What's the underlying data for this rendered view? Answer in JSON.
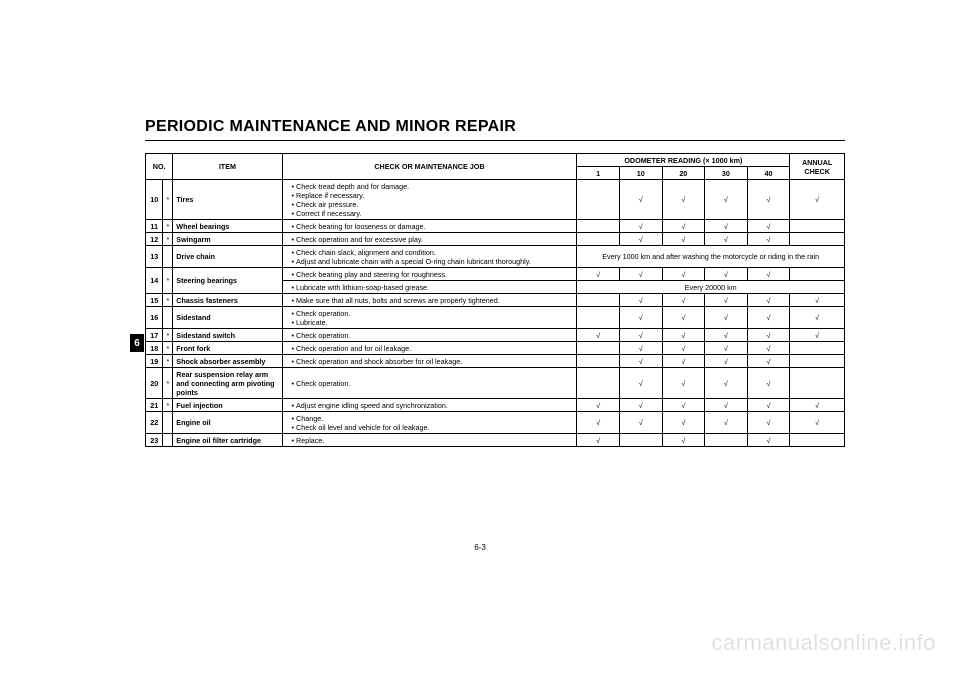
{
  "page": {
    "title": "PERIODIC MAINTENANCE AND MINOR REPAIR",
    "section_tab": "6",
    "page_number": "6-3",
    "watermark": "carmanualsonline.info"
  },
  "typography": {
    "title_fontsize_pt": 12,
    "table_fontsize_pt": 5.5,
    "tab_fontsize_pt": 8,
    "watermark_fontsize_pt": 16
  },
  "colors": {
    "text": "#000000",
    "background": "#ffffff",
    "border": "#000000",
    "tab_bg": "#000000",
    "tab_fg": "#ffffff",
    "watermark": "rgba(0,0,0,0.12)"
  },
  "table": {
    "check_glyph": "√",
    "header": {
      "no": "NO.",
      "item": "ITEM",
      "job": "CHECK OR MAINTENANCE JOB",
      "odometer_title": "ODOMETER READING (× 1000 km)",
      "annual": "ANNUAL CHECK",
      "odometer_cols": [
        "1",
        "10",
        "20",
        "30",
        "40"
      ]
    },
    "rows": [
      {
        "no": "10",
        "star": "*",
        "item": "Tires",
        "jobs": [
          "Check tread depth and for damage.",
          "Replace if necessary.",
          "Check air pressure.",
          "Correct if necessary."
        ],
        "checks": [
          "",
          "√",
          "√",
          "√",
          "√"
        ],
        "annual": "√"
      },
      {
        "no": "11",
        "star": "*",
        "item": "Wheel bearings",
        "jobs": [
          "Check bearing for looseness or damage."
        ],
        "checks": [
          "",
          "√",
          "√",
          "√",
          "√"
        ],
        "annual": ""
      },
      {
        "no": "12",
        "star": "*",
        "item": "Swingarm",
        "jobs": [
          "Check operation and for excessive play."
        ],
        "checks": [
          "",
          "√",
          "√",
          "√",
          "√"
        ],
        "annual": ""
      },
      {
        "no": "13",
        "star": "",
        "item": "Drive chain",
        "jobs": [
          "Check chain slack, alignment and condition.",
          "Adjust and lubricate chain with a special O-ring chain lubricant thoroughly."
        ],
        "span_note": "Every 1000 km and after washing the motorcycle or riding in the rain"
      },
      {
        "no": "14",
        "star": "*",
        "item": "Steering bearings",
        "subrows": [
          {
            "jobs": [
              "Check bearing play and steering for roughness."
            ],
            "checks": [
              "√",
              "√",
              "√",
              "√",
              "√"
            ],
            "annual": ""
          },
          {
            "jobs": [
              "Lubricate with lithium-soap-based grease."
            ],
            "span_note": "Every 20000 km"
          }
        ]
      },
      {
        "no": "15",
        "star": "*",
        "item": "Chassis fasteners",
        "jobs": [
          "Make sure that all nuts, bolts and screws are properly tightened."
        ],
        "checks": [
          "",
          "√",
          "√",
          "√",
          "√"
        ],
        "annual": "√"
      },
      {
        "no": "16",
        "star": "",
        "item": "Sidestand",
        "jobs": [
          "Check operation.",
          "Lubricate."
        ],
        "checks": [
          "",
          "√",
          "√",
          "√",
          "√"
        ],
        "annual": "√"
      },
      {
        "no": "17",
        "star": "*",
        "item": "Sidestand switch",
        "jobs": [
          "Check operation."
        ],
        "checks": [
          "√",
          "√",
          "√",
          "√",
          "√"
        ],
        "annual": "√"
      },
      {
        "no": "18",
        "star": "*",
        "item": "Front fork",
        "jobs": [
          "Check operation and for oil leakage."
        ],
        "checks": [
          "",
          "√",
          "√",
          "√",
          "√"
        ],
        "annual": ""
      },
      {
        "no": "19",
        "star": "*",
        "item": "Shock absorber assembly",
        "jobs": [
          "Check operation and shock absorber for oil leakage."
        ],
        "checks": [
          "",
          "√",
          "√",
          "√",
          "√"
        ],
        "annual": ""
      },
      {
        "no": "20",
        "star": "*",
        "item": "Rear suspension relay arm and connecting arm pivoting points",
        "jobs": [
          "Check operation."
        ],
        "checks": [
          "",
          "√",
          "√",
          "√",
          "√"
        ],
        "annual": ""
      },
      {
        "no": "21",
        "star": "*",
        "item": "Fuel injection",
        "jobs": [
          "Adjust engine idling speed and synchronization."
        ],
        "checks": [
          "√",
          "√",
          "√",
          "√",
          "√"
        ],
        "annual": "√"
      },
      {
        "no": "22",
        "star": "",
        "item": "Engine oil",
        "jobs": [
          "Change.",
          "Check oil level and vehicle for oil leakage."
        ],
        "checks": [
          "√",
          "√",
          "√",
          "√",
          "√"
        ],
        "annual": "√"
      },
      {
        "no": "23",
        "star": "",
        "item": "Engine oil filter cartridge",
        "jobs": [
          "Replace."
        ],
        "checks": [
          "√",
          "",
          "√",
          "",
          "√"
        ],
        "annual": ""
      }
    ]
  }
}
